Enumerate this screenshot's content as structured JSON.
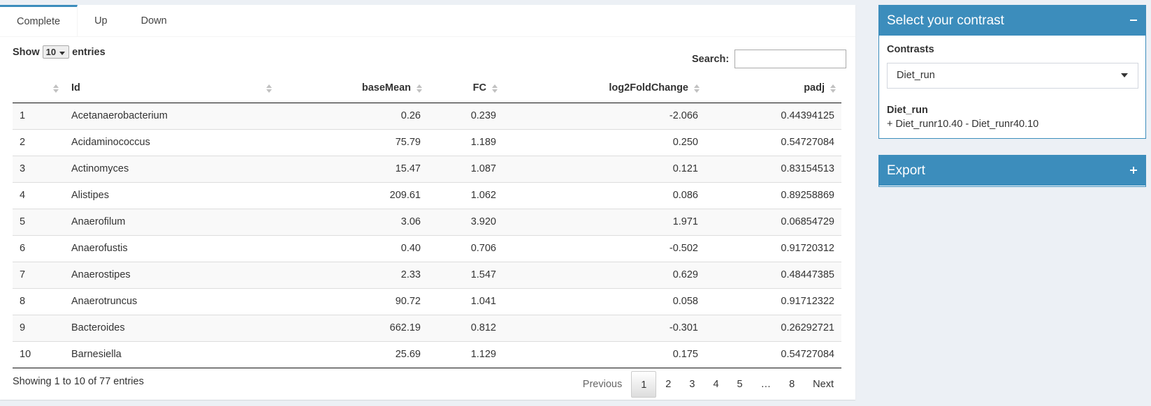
{
  "tabs": [
    "Complete",
    "Up",
    "Down"
  ],
  "length_menu": {
    "label_before": "Show",
    "value": "10",
    "label_after": "entries"
  },
  "search": {
    "label": "Search:"
  },
  "table": {
    "columns": [
      "Id",
      "baseMean",
      "FC",
      "log2FoldChange",
      "padj"
    ],
    "rows": [
      [
        "1",
        "Acetanaerobacterium",
        "0.26",
        "0.239",
        "-2.066",
        "0.44394125"
      ],
      [
        "2",
        "Acidaminococcus",
        "75.79",
        "1.189",
        "0.250",
        "0.54727084"
      ],
      [
        "3",
        "Actinomyces",
        "15.47",
        "1.087",
        "0.121",
        "0.83154513"
      ],
      [
        "4",
        "Alistipes",
        "209.61",
        "1.062",
        "0.086",
        "0.89258869"
      ],
      [
        "5",
        "Anaerofilum",
        "3.06",
        "3.920",
        "1.971",
        "0.06854729"
      ],
      [
        "6",
        "Anaerofustis",
        "0.40",
        "0.706",
        "-0.502",
        "0.91720312"
      ],
      [
        "7",
        "Anaerostipes",
        "2.33",
        "1.547",
        "0.629",
        "0.48447385"
      ],
      [
        "8",
        "Anaerotruncus",
        "90.72",
        "1.041",
        "0.058",
        "0.91712322"
      ],
      [
        "9",
        "Bacteroides",
        "662.19",
        "0.812",
        "-0.301",
        "0.26292721"
      ],
      [
        "10",
        "Barnesiella",
        "25.69",
        "1.129",
        "0.175",
        "0.54727084"
      ]
    ]
  },
  "info": "Showing 1 to 10 of 77 entries",
  "pagination": [
    "Previous",
    "1",
    "2",
    "3",
    "4",
    "5",
    "…",
    "8",
    "Next"
  ],
  "sidebar": {
    "contrast_box": {
      "title": "Select your contrast",
      "label": "Contrasts",
      "selected": "Diet_run",
      "contrast_name": "Diet_run",
      "formula": "+ Diet_runr10.40 - Diet_runr40.10"
    },
    "export_box": {
      "title": "Export"
    }
  }
}
